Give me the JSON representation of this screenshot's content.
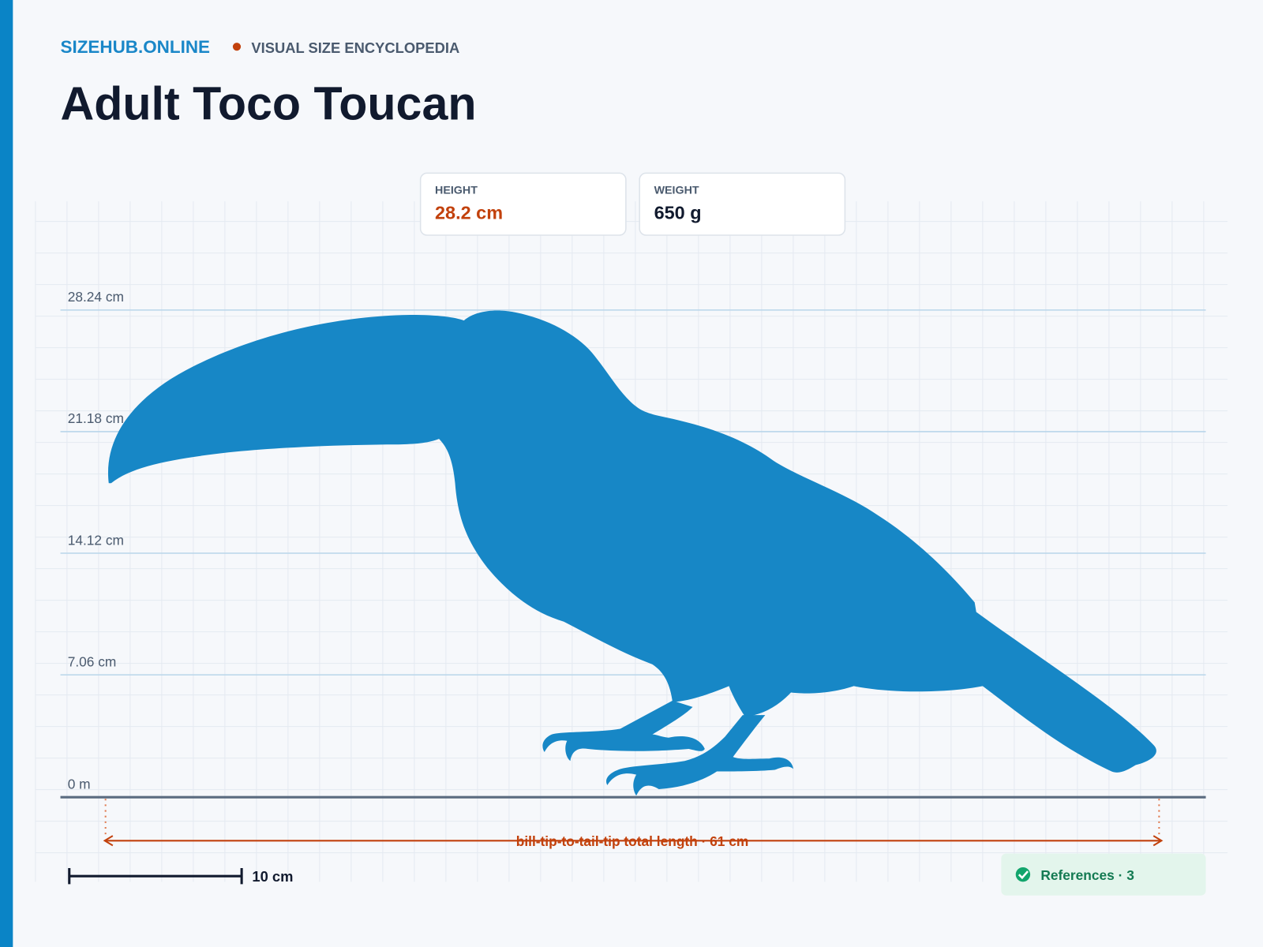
{
  "header": {
    "brand": "SIZEHUB.ONLINE",
    "tagline": "VISUAL SIZE ENCYCLOPEDIA",
    "title": "Adult Toco Toucan"
  },
  "stats": [
    {
      "label": "HEIGHT",
      "value": "28.2 cm"
    },
    {
      "label": "WEIGHT",
      "value": "650 g"
    }
  ],
  "height_lines": [
    "28.24 cm",
    "21.18 cm",
    "14.12 cm",
    "7.06 cm",
    "0 m"
  ],
  "length_annotation": "bill-tip-to-tail-tip total length · 61 cm",
  "scale_bar": "10 cm",
  "references": "References · 3"
}
